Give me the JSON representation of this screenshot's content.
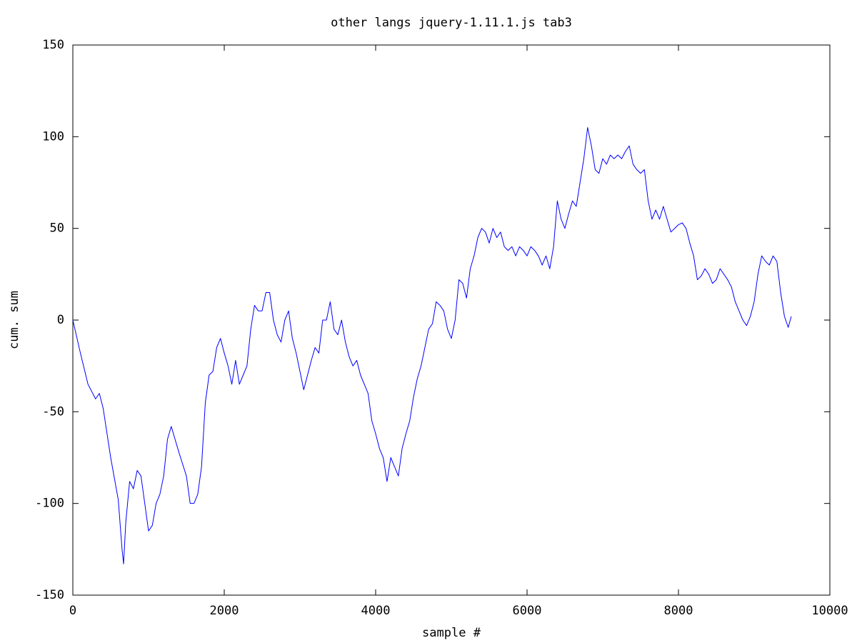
{
  "chart_data": {
    "type": "line",
    "title": "other langs jquery-1.11.1.js tab3",
    "xlabel": "sample #",
    "ylabel": "cum. sum",
    "xlim": [
      0,
      10000
    ],
    "ylim": [
      -150,
      150
    ],
    "xticks": [
      0,
      2000,
      4000,
      6000,
      8000,
      10000
    ],
    "yticks": [
      -150,
      -100,
      -50,
      0,
      50,
      100,
      150
    ],
    "grid": false,
    "x": [
      0,
      100,
      200,
      300,
      350,
      400,
      500,
      600,
      650,
      670,
      700,
      750,
      800,
      850,
      900,
      950,
      1000,
      1050,
      1100,
      1150,
      1200,
      1250,
      1300,
      1350,
      1400,
      1500,
      1550,
      1600,
      1650,
      1700,
      1750,
      1800,
      1850,
      1900,
      1950,
      2000,
      2050,
      2100,
      2150,
      2200,
      2250,
      2300,
      2350,
      2400,
      2450,
      2500,
      2550,
      2600,
      2650,
      2700,
      2750,
      2800,
      2850,
      2900,
      2950,
      3000,
      3050,
      3100,
      3150,
      3200,
      3250,
      3300,
      3350,
      3400,
      3450,
      3500,
      3550,
      3600,
      3650,
      3700,
      3750,
      3800,
      3850,
      3900,
      3950,
      4000,
      4050,
      4100,
      4150,
      4200,
      4250,
      4300,
      4350,
      4400,
      4450,
      4500,
      4550,
      4600,
      4650,
      4700,
      4750,
      4800,
      4850,
      4900,
      4950,
      5000,
      5050,
      5100,
      5150,
      5200,
      5250,
      5300,
      5350,
      5400,
      5450,
      5500,
      5550,
      5600,
      5650,
      5700,
      5750,
      5800,
      5850,
      5900,
      5950,
      6000,
      6050,
      6100,
      6150,
      6200,
      6250,
      6300,
      6350,
      6400,
      6450,
      6500,
      6550,
      6600,
      6650,
      6700,
      6750,
      6800,
      6850,
      6900,
      6950,
      7000,
      7050,
      7100,
      7150,
      7200,
      7250,
      7300,
      7350,
      7400,
      7450,
      7500,
      7550,
      7600,
      7650,
      7700,
      7750,
      7800,
      7850,
      7900,
      7950,
      8000,
      8050,
      8100,
      8150,
      8200,
      8250,
      8300,
      8350,
      8400,
      8450,
      8500,
      8550,
      8600,
      8650,
      8700,
      8750,
      8800,
      8850,
      8900,
      8950,
      9000,
      9050,
      9100,
      9150,
      9200,
      9250,
      9300,
      9350,
      9400,
      9450,
      9490
    ],
    "series": [
      {
        "name": "cum. sum",
        "color": "#0000ff",
        "values": [
          0,
          -18,
          -35,
          -43,
          -40,
          -48,
          -75,
          -98,
          -125,
          -133,
          -110,
          -88,
          -92,
          -82,
          -85,
          -100,
          -115,
          -112,
          -100,
          -95,
          -85,
          -65,
          -58,
          -65,
          -72,
          -85,
          -100,
          -100,
          -95,
          -80,
          -45,
          -30,
          -28,
          -15,
          -10,
          -18,
          -25,
          -35,
          -22,
          -35,
          -30,
          -25,
          -5,
          8,
          5,
          5,
          15,
          15,
          0,
          -8,
          -12,
          0,
          5,
          -10,
          -18,
          -28,
          -38,
          -30,
          -22,
          -15,
          -18,
          0,
          0,
          10,
          -5,
          -8,
          0,
          -12,
          -20,
          -25,
          -22,
          -30,
          -35,
          -40,
          -55,
          -62,
          -70,
          -75,
          -88,
          -75,
          -80,
          -85,
          -70,
          -62,
          -55,
          -42,
          -32,
          -25,
          -15,
          -5,
          -2,
          10,
          8,
          5,
          -5,
          -10,
          0,
          22,
          20,
          12,
          28,
          35,
          45,
          50,
          48,
          42,
          50,
          45,
          48,
          40,
          38,
          40,
          35,
          40,
          38,
          35,
          40,
          38,
          35,
          30,
          35,
          28,
          40,
          65,
          55,
          50,
          58,
          65,
          62,
          75,
          88,
          105,
          95,
          82,
          80,
          88,
          85,
          90,
          88,
          90,
          88,
          92,
          95,
          85,
          82,
          80,
          82,
          65,
          55,
          60,
          55,
          62,
          55,
          48,
          50,
          52,
          53,
          50,
          42,
          35,
          22,
          24,
          28,
          25,
          20,
          22,
          28,
          25,
          22,
          18,
          10,
          5,
          0,
          -3,
          2,
          10,
          25,
          35,
          32,
          30,
          35,
          32,
          15,
          2,
          -4,
          2
        ]
      }
    ]
  }
}
